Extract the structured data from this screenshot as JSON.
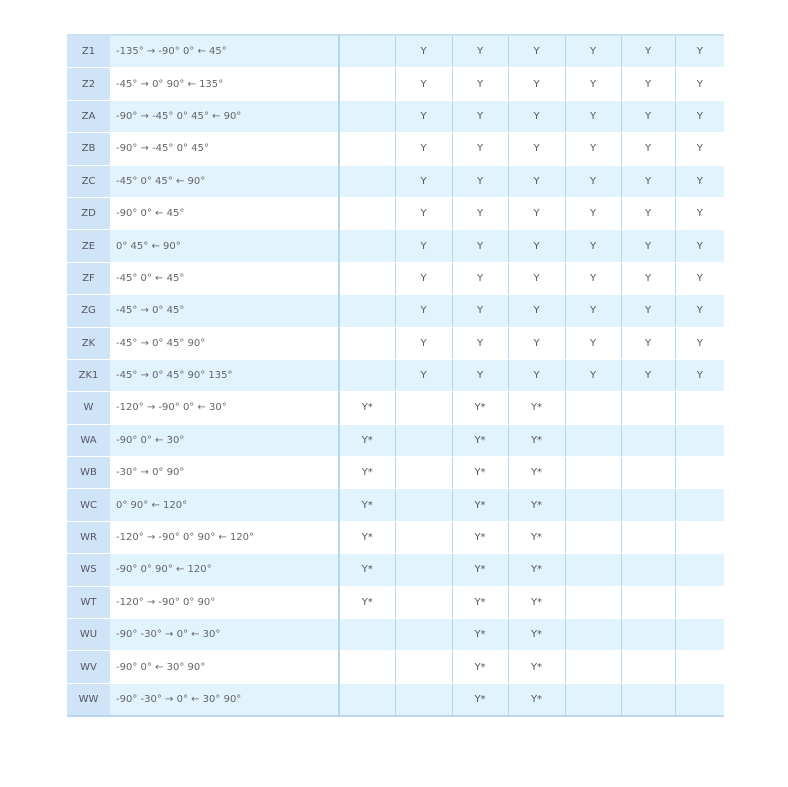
{
  "rows": [
    {
      "code": "Z1",
      "desc": "-135° → -90°  0°  ← 45°",
      "vals": [
        "",
        "Y",
        "Y",
        "Y",
        "Y",
        "Y",
        "Y"
      ]
    },
    {
      "code": "Z2",
      "desc": "-45°  → 0°  90°  ← 135°",
      "vals": [
        "",
        "Y",
        "Y",
        "Y",
        "Y",
        "Y",
        "Y"
      ]
    },
    {
      "code": "ZA",
      "desc": "-90°  → -45°  0°  45°  ← 90°",
      "vals": [
        "",
        "Y",
        "Y",
        "Y",
        "Y",
        "Y",
        "Y"
      ]
    },
    {
      "code": "ZB",
      "desc": "-90°  → -45°  0°  45°",
      "vals": [
        "",
        "Y",
        "Y",
        "Y",
        "Y",
        "Y",
        "Y"
      ]
    },
    {
      "code": "ZC",
      "desc": "-45°  0°  45°  ← 90°",
      "vals": [
        "",
        "Y",
        "Y",
        "Y",
        "Y",
        "Y",
        "Y"
      ]
    },
    {
      "code": "ZD",
      "desc": "-90°  0°  ← 45°",
      "vals": [
        "",
        "Y",
        "Y",
        "Y",
        "Y",
        "Y",
        "Y"
      ]
    },
    {
      "code": "ZE",
      "desc": "0°  45°  ← 90°",
      "vals": [
        "",
        "Y",
        "Y",
        "Y",
        "Y",
        "Y",
        "Y"
      ]
    },
    {
      "code": "ZF",
      "desc": "-45°  0°  ← 45°",
      "vals": [
        "",
        "Y",
        "Y",
        "Y",
        "Y",
        "Y",
        "Y"
      ]
    },
    {
      "code": "ZG",
      "desc": "-45°  → 0°  45°",
      "vals": [
        "",
        "Y",
        "Y",
        "Y",
        "Y",
        "Y",
        "Y"
      ]
    },
    {
      "code": "ZK",
      "desc": "-45°  → 0°  45°  90°",
      "vals": [
        "",
        "Y",
        "Y",
        "Y",
        "Y",
        "Y",
        "Y"
      ]
    },
    {
      "code": "ZK1",
      "desc": "-45°  → 0°  45°  90°  135°",
      "vals": [
        "",
        "Y",
        "Y",
        "Y",
        "Y",
        "Y",
        "Y"
      ]
    },
    {
      "code": "W",
      "desc": "-120°  → -90°  0°  ← 30°",
      "vals": [
        "Y*",
        "",
        "Y*",
        "Y*",
        "",
        "",
        ""
      ]
    },
    {
      "code": "WA",
      "desc": "-90°  0°  ← 30°",
      "vals": [
        "Y*",
        "",
        "Y*",
        "Y*",
        "",
        "",
        ""
      ]
    },
    {
      "code": "WB",
      "desc": "-30°  → 0°  90°",
      "vals": [
        "Y*",
        "",
        "Y*",
        "Y*",
        "",
        "",
        ""
      ]
    },
    {
      "code": "WC",
      "desc": "0°  90°  ← 120°",
      "vals": [
        "Y*",
        "",
        "Y*",
        "Y*",
        "",
        "",
        ""
      ]
    },
    {
      "code": "WR",
      "desc": "-120°  → -90°  0°  90°  ← 120°",
      "vals": [
        "Y*",
        "",
        "Y*",
        "Y*",
        "",
        "",
        ""
      ]
    },
    {
      "code": "WS",
      "desc": "-90°  0°  90°  ← 120°",
      "vals": [
        "Y*",
        "",
        "Y*",
        "Y*",
        "",
        "",
        ""
      ]
    },
    {
      "code": "WT",
      "desc": "-120°  → -90°  0°  90°",
      "vals": [
        "Y*",
        "",
        "Y*",
        "Y*",
        "",
        "",
        ""
      ]
    },
    {
      "code": "WU",
      "desc": "-90°  -30°  → 0°  ← 30°",
      "vals": [
        "",
        "",
        "Y*",
        "Y*",
        "",
        "",
        ""
      ]
    },
    {
      "code": "WV",
      "desc": "-90°  0°  ← 30°  90°",
      "vals": [
        "",
        "",
        "Y*",
        "Y*",
        "",
        "",
        ""
      ]
    },
    {
      "code": "WW",
      "desc": "-90°  -30°  → 0°  ← 30°  90°",
      "vals": [
        "",
        "",
        "Y*",
        "Y*",
        "",
        "",
        ""
      ]
    }
  ]
}
